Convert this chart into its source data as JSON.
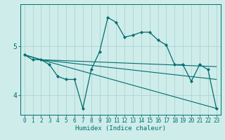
{
  "xlabel": "Humidex (Indice chaleur)",
  "background_color": "#ceecea",
  "grid_color": "#aed4d2",
  "line_color": "#006e6e",
  "xlim": [
    -0.5,
    23.5
  ],
  "ylim": [
    3.6,
    5.85
  ],
  "yticks": [
    4,
    5
  ],
  "xticks": [
    0,
    1,
    2,
    3,
    4,
    5,
    6,
    7,
    8,
    9,
    10,
    11,
    12,
    13,
    14,
    15,
    16,
    17,
    18,
    19,
    20,
    21,
    22,
    23
  ],
  "series1_x": [
    0,
    1,
    2,
    3,
    4,
    5,
    6,
    7,
    8,
    9,
    10,
    11,
    12,
    13,
    14,
    15,
    16,
    17,
    18,
    19,
    20,
    21,
    22,
    23
  ],
  "series1_y": [
    4.82,
    4.72,
    4.72,
    4.62,
    4.38,
    4.32,
    4.32,
    3.73,
    4.52,
    4.88,
    5.58,
    5.48,
    5.18,
    5.22,
    5.28,
    5.28,
    5.12,
    5.02,
    4.62,
    4.62,
    4.28,
    4.62,
    4.52,
    3.73
  ],
  "series2_x": [
    0,
    2,
    23
  ],
  "series2_y": [
    4.82,
    4.72,
    4.58
  ],
  "series3_x": [
    0,
    2,
    23
  ],
  "series3_y": [
    4.82,
    4.72,
    4.32
  ],
  "series4_x": [
    0,
    2,
    23
  ],
  "series4_y": [
    4.82,
    4.72,
    3.73
  ]
}
